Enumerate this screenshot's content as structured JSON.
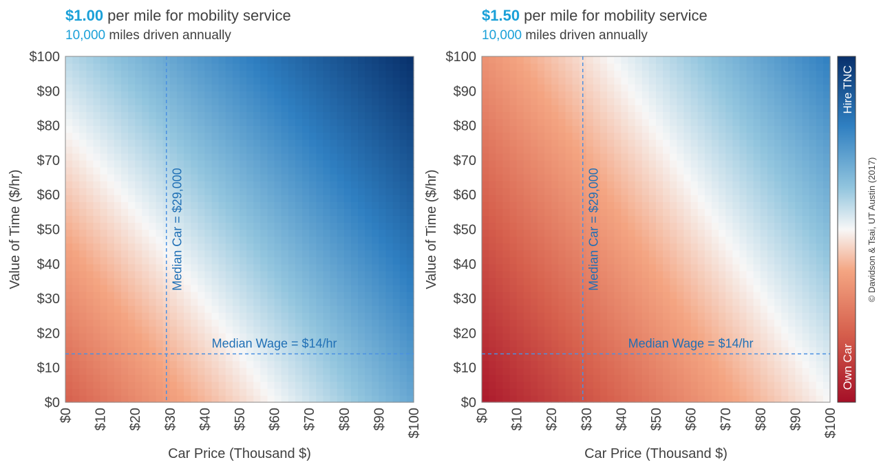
{
  "colors": {
    "own_car_dark": "#a50f27",
    "neutral": "#f7f7f7",
    "hire_dark": "#08306b",
    "title_accent": "#1aa0d8",
    "reference_line": "#4a90e2",
    "reference_text": "#1f6fb5",
    "axis_text": "#404040"
  },
  "colorbar": {
    "top_label": "Hire TNC",
    "bottom_label": "Own Car"
  },
  "credit": "© Davidson & Tsai, UT Austin (2017)",
  "chart_data": [
    {
      "type": "heatmap",
      "title_value": "$1.00",
      "title_rest": " per mile for mobility service",
      "subtitle_value": "10,000",
      "subtitle_rest": " miles driven annually",
      "xlabel": "Car Price (Thousand $)",
      "ylabel": "Value of Time ($/hr)",
      "xlim": [
        0,
        100
      ],
      "ylim": [
        0,
        100
      ],
      "x_ticks": [
        "$0",
        "$10",
        "$20",
        "$30",
        "$40",
        "$50",
        "$60",
        "$70",
        "$80",
        "$90",
        "$100"
      ],
      "y_ticks": [
        "$0",
        "$10",
        "$20",
        "$30",
        "$40",
        "$50",
        "$60",
        "$70",
        "$80",
        "$90",
        "$100"
      ],
      "z_description": "preference: negative = Own Car, positive = Hire TNC",
      "z_corners": {
        "x0_y0": -0.6,
        "x100_y0": 0.4,
        "x0_y100": 0.15,
        "x100_y100": 1.0
      },
      "vline": {
        "x": 29,
        "label": "Median Car = $29,000"
      },
      "hline": {
        "y": 14,
        "label": "Median Wage = $14/hr"
      }
    },
    {
      "type": "heatmap",
      "title_value": "$1.50",
      "title_rest": " per mile for mobility service",
      "subtitle_value": "10,000",
      "subtitle_rest": " miles driven annually",
      "xlabel": "Car Price (Thousand $)",
      "ylabel": "Value of Time ($/hr)",
      "xlim": [
        0,
        100
      ],
      "ylim": [
        0,
        100
      ],
      "x_ticks": [
        "$0",
        "$10",
        "$20",
        "$30",
        "$40",
        "$50",
        "$60",
        "$70",
        "$80",
        "$90",
        "$100"
      ],
      "y_ticks": [
        "$0",
        "$10",
        "$20",
        "$30",
        "$40",
        "$50",
        "$60",
        "$70",
        "$80",
        "$90",
        "$100"
      ],
      "z_description": "preference: negative = Own Car, positive = Hire TNC",
      "z_corners": {
        "x0_y0": -0.95,
        "x100_y0": 0.0,
        "x0_y100": -0.35,
        "x100_y100": 0.6
      },
      "vline": {
        "x": 29,
        "label": "Median Car = $29,000"
      },
      "hline": {
        "y": 14,
        "label": "Median Wage = $14/hr"
      }
    }
  ]
}
